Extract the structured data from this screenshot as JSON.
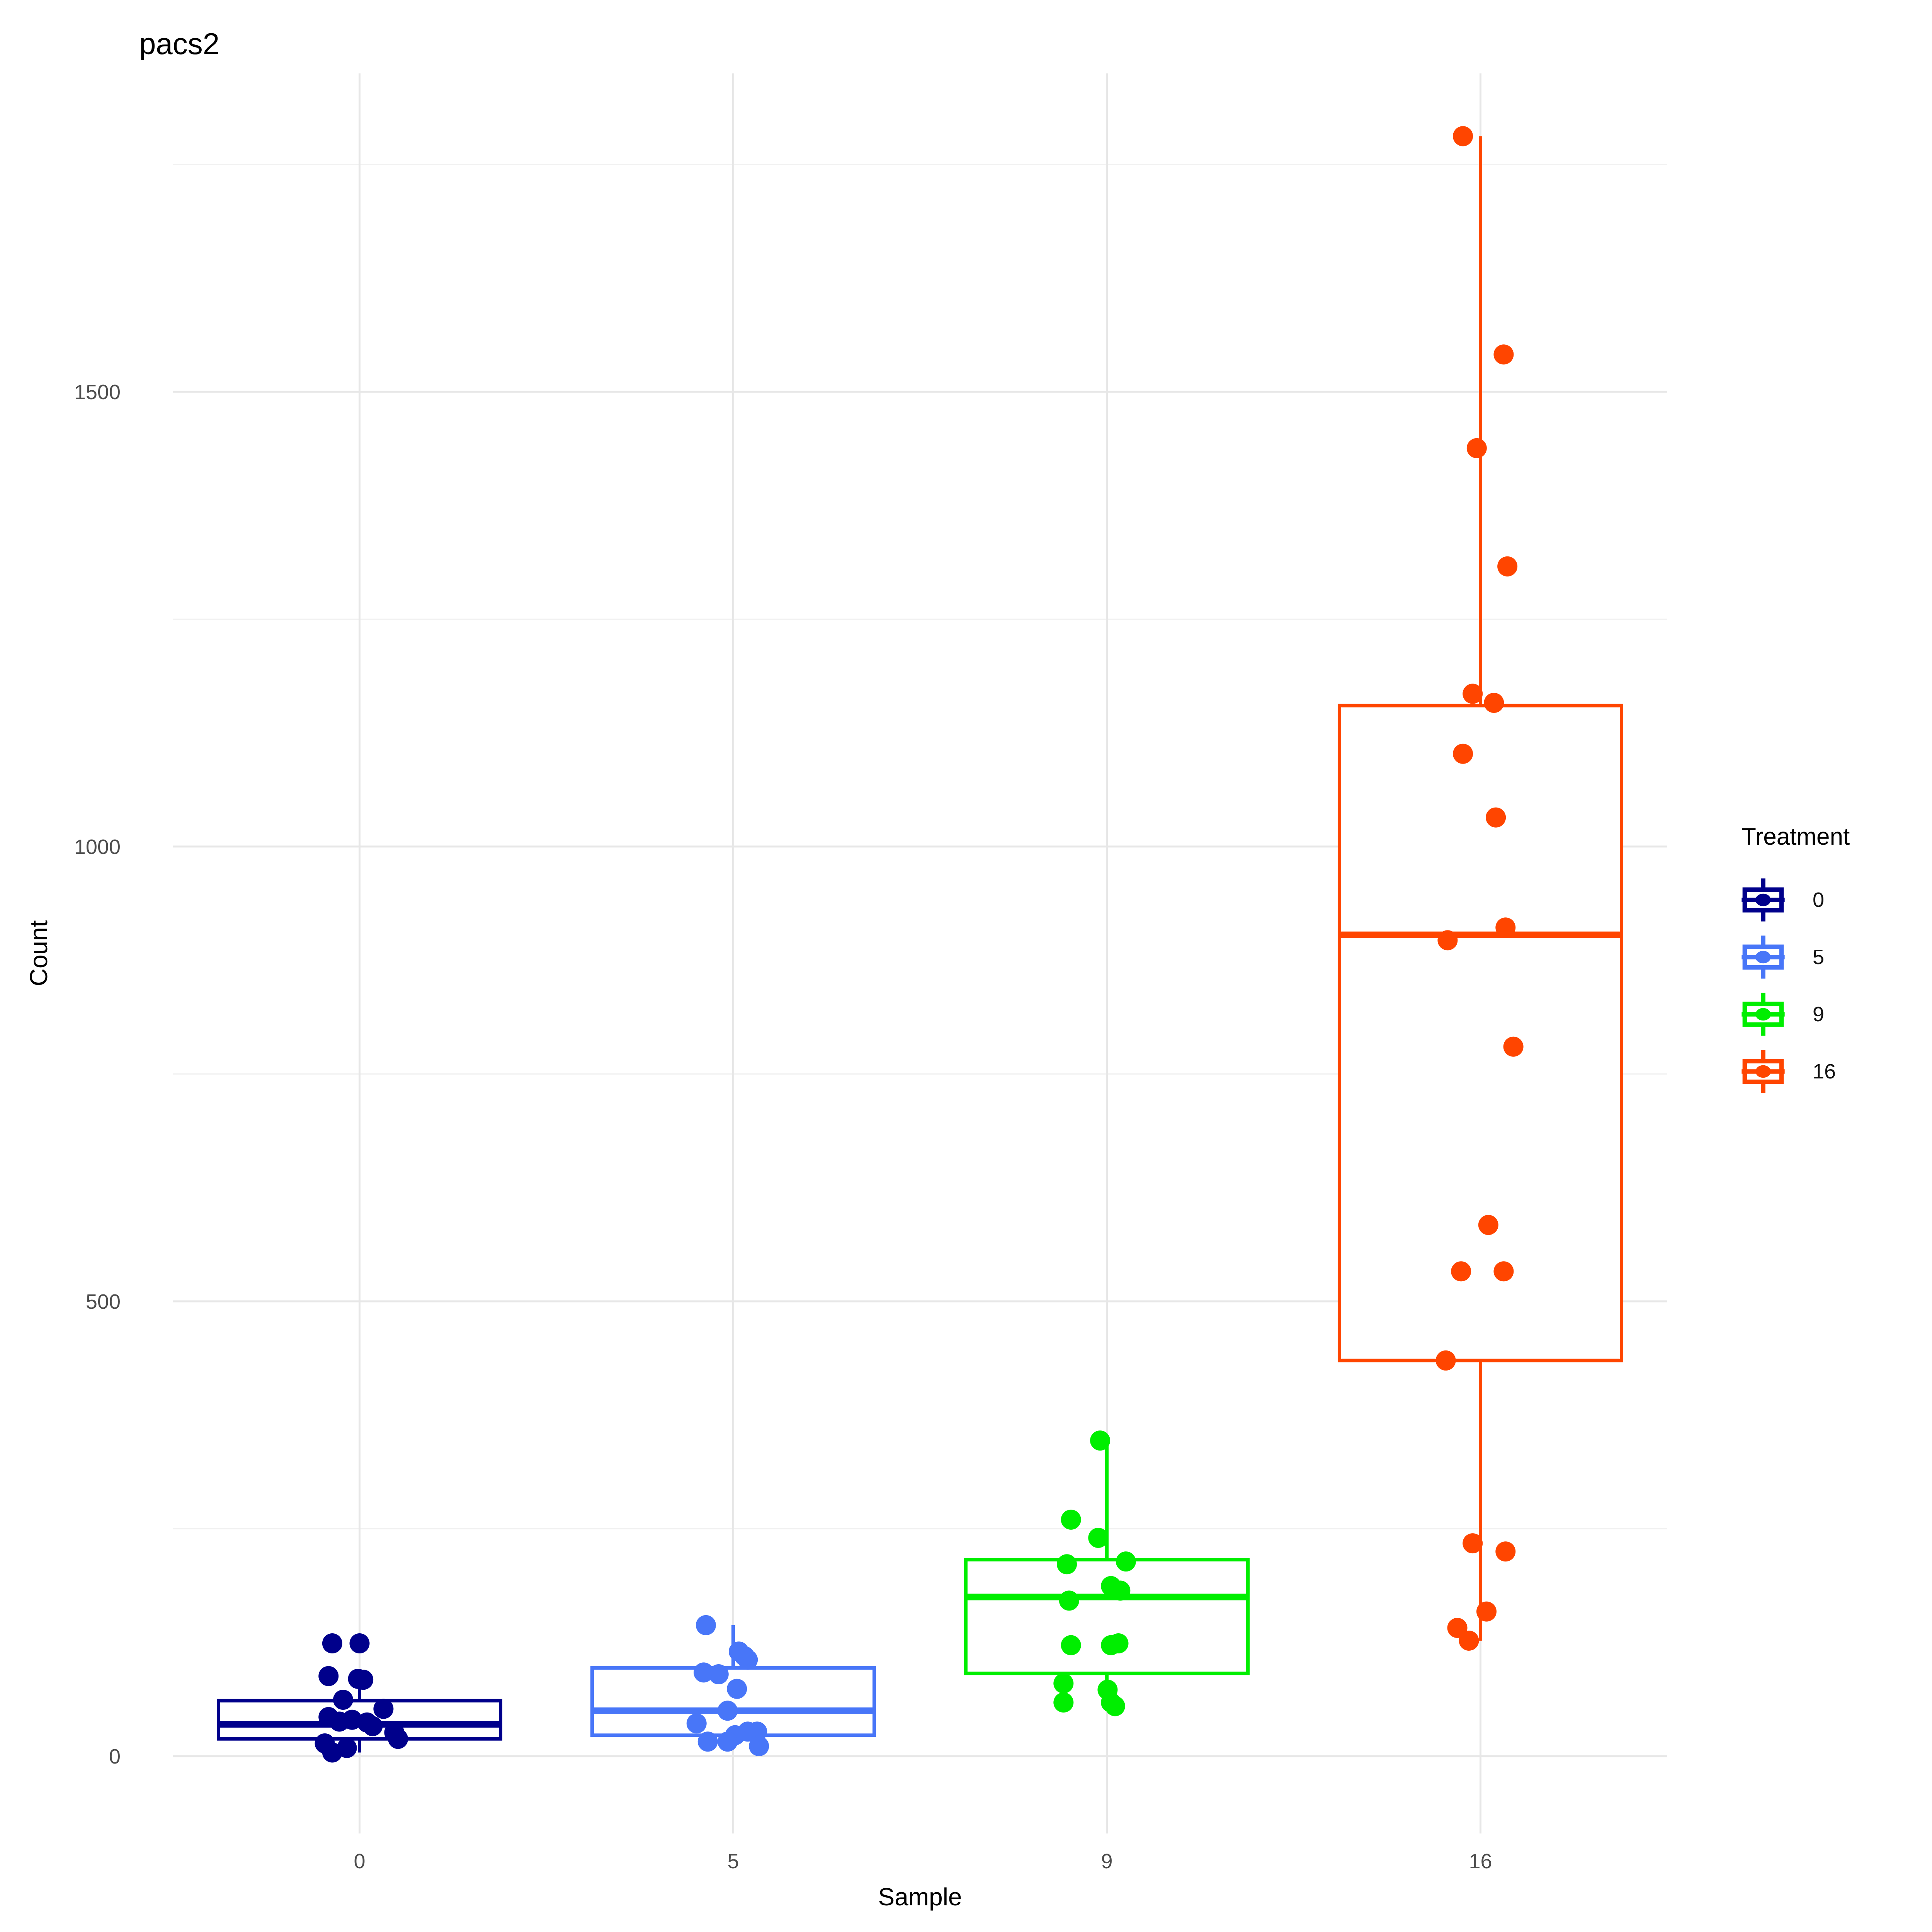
{
  "chart_data": {
    "type": "boxplot",
    "title": "pacs2",
    "xlabel": "Sample",
    "ylabel": "Count",
    "categories": [
      "0",
      "5",
      "9",
      "16"
    ],
    "y_major_ticks": [
      0,
      500,
      1000,
      1500
    ],
    "y_minor_ticks": [
      250,
      750,
      1250,
      1750
    ],
    "ylim": [
      -85,
      1850
    ],
    "grid": true,
    "legend": {
      "title": "Treatment",
      "position": "right",
      "labels": [
        "0",
        "5",
        "9",
        "16"
      ]
    },
    "series": [
      {
        "name": "0",
        "color": "#00008B",
        "box": {
          "q1": 19,
          "median": 35,
          "q3": 61,
          "whisker_low": 4,
          "whisker_high": 75
        },
        "points": [
          {
            "v": 124,
            "j": -0.073
          },
          {
            "v": 124,
            "j": 0.0
          },
          {
            "v": 88,
            "j": -0.083
          },
          {
            "v": 85,
            "j": -0.004
          },
          {
            "v": 84,
            "j": 0.01
          },
          {
            "v": 62,
            "j": -0.044
          },
          {
            "v": 52,
            "j": 0.064
          },
          {
            "v": 43,
            "j": -0.083
          },
          {
            "v": 40,
            "j": -0.02
          },
          {
            "v": 38,
            "j": -0.054
          },
          {
            "v": 37,
            "j": 0.02
          },
          {
            "v": 33,
            "j": 0.035
          },
          {
            "v": 26,
            "j": 0.093
          },
          {
            "v": 19,
            "j": 0.103
          },
          {
            "v": 14,
            "j": -0.093
          },
          {
            "v": 9,
            "j": -0.034
          },
          {
            "v": 4,
            "j": -0.073
          }
        ]
      },
      {
        "name": "5",
        "color": "#4876F8",
        "box": {
          "q1": 23,
          "median": 50,
          "q3": 97,
          "whisker_low": 11,
          "whisker_high": 144
        },
        "points": [
          {
            "v": 144,
            "j": -0.073
          },
          {
            "v": 115,
            "j": 0.015
          },
          {
            "v": 110,
            "j": 0.03
          },
          {
            "v": 106,
            "j": 0.039
          },
          {
            "v": 92,
            "j": -0.079
          },
          {
            "v": 90,
            "j": -0.039
          },
          {
            "v": 74,
            "j": 0.01
          },
          {
            "v": 50,
            "j": -0.015
          },
          {
            "v": 36,
            "j": -0.098
          },
          {
            "v": 27,
            "j": 0.039
          },
          {
            "v": 27,
            "j": 0.064
          },
          {
            "v": 23,
            "j": 0.005
          },
          {
            "v": 16,
            "j": -0.068
          },
          {
            "v": 16,
            "j": -0.015
          },
          {
            "v": 11,
            "j": 0.069
          }
        ]
      },
      {
        "name": "9",
        "color": "#00EE00",
        "box": {
          "q1": 91,
          "median": 175,
          "q3": 216,
          "whisker_low": 55,
          "whisker_high": 347
        },
        "points": [
          {
            "v": 347,
            "j": -0.018
          },
          {
            "v": 260,
            "j": -0.096
          },
          {
            "v": 240,
            "j": -0.023
          },
          {
            "v": 214,
            "j": 0.051
          },
          {
            "v": 211,
            "j": -0.107
          },
          {
            "v": 187,
            "j": 0.011
          },
          {
            "v": 182,
            "j": 0.036
          },
          {
            "v": 171,
            "j": -0.101
          },
          {
            "v": 124,
            "j": 0.031
          },
          {
            "v": 122,
            "j": -0.096
          },
          {
            "v": 122,
            "j": 0.011
          },
          {
            "v": 80,
            "j": -0.116
          },
          {
            "v": 73,
            "j": 0.002
          },
          {
            "v": 59,
            "j": -0.116
          },
          {
            "v": 59,
            "j": 0.011
          },
          {
            "v": 55,
            "j": 0.022
          }
        ]
      },
      {
        "name": "16",
        "color": "#FF4500",
        "box": {
          "q1": 435,
          "median": 903,
          "q3": 1155,
          "whisker_low": 127,
          "whisker_high": 1781
        },
        "points": [
          {
            "v": 1781,
            "j": -0.047
          },
          {
            "v": 1541,
            "j": 0.062
          },
          {
            "v": 1438,
            "j": -0.01
          },
          {
            "v": 1308,
            "j": 0.072
          },
          {
            "v": 1168,
            "j": -0.021
          },
          {
            "v": 1158,
            "j": 0.036
          },
          {
            "v": 1102,
            "j": -0.047
          },
          {
            "v": 1032,
            "j": 0.041
          },
          {
            "v": 911,
            "j": 0.067
          },
          {
            "v": 897,
            "j": -0.088
          },
          {
            "v": 780,
            "j": 0.088
          },
          {
            "v": 584,
            "j": 0.021
          },
          {
            "v": 533,
            "j": -0.052
          },
          {
            "v": 533,
            "j": 0.062
          },
          {
            "v": 435,
            "j": -0.093
          },
          {
            "v": 234,
            "j": -0.021
          },
          {
            "v": 225,
            "j": 0.067
          },
          {
            "v": 159,
            "j": 0.016
          },
          {
            "v": 141,
            "j": -0.062
          },
          {
            "v": 127,
            "j": -0.031
          }
        ]
      }
    ],
    "style": {
      "background": "#FFFFFF",
      "grid_major_color": "#E7E7E7",
      "grid_minor_color": "#F1F1F1",
      "tick_label_color": "#4D4D4D",
      "text_color": "#000000",
      "box_fill": "#FFFFFF",
      "box_width_frac": 0.755,
      "point_radius": 26
    }
  }
}
